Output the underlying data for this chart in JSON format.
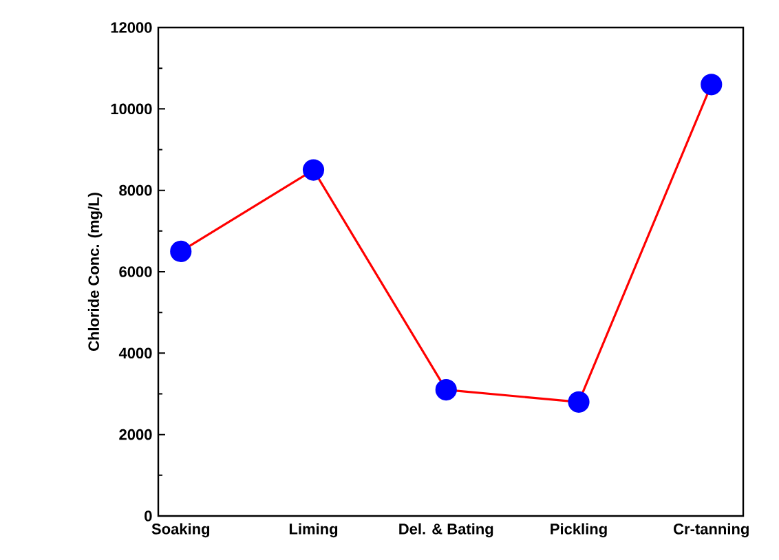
{
  "chart_data": {
    "type": "line",
    "ylabel": "Chloride Conc. (mg/L)",
    "categories": [
      "Soaking",
      "Liming",
      "Del. & Bating",
      "Pickling",
      "Cr-tanning"
    ],
    "series": [
      {
        "color": "#ff0000",
        "colors": [
          "#0000ff",
          "#0000ff",
          "#0000ff",
          "#0000ff",
          "#0000ff"
        ],
        "values": [
          6500,
          8500,
          3100,
          2800,
          10600
        ]
      }
    ],
    "ylim": [
      0,
      12000
    ],
    "yticks": [
      0,
      2000,
      4000,
      6000,
      8000,
      10000,
      12000
    ],
    "marker": "circle",
    "grid": false
  }
}
